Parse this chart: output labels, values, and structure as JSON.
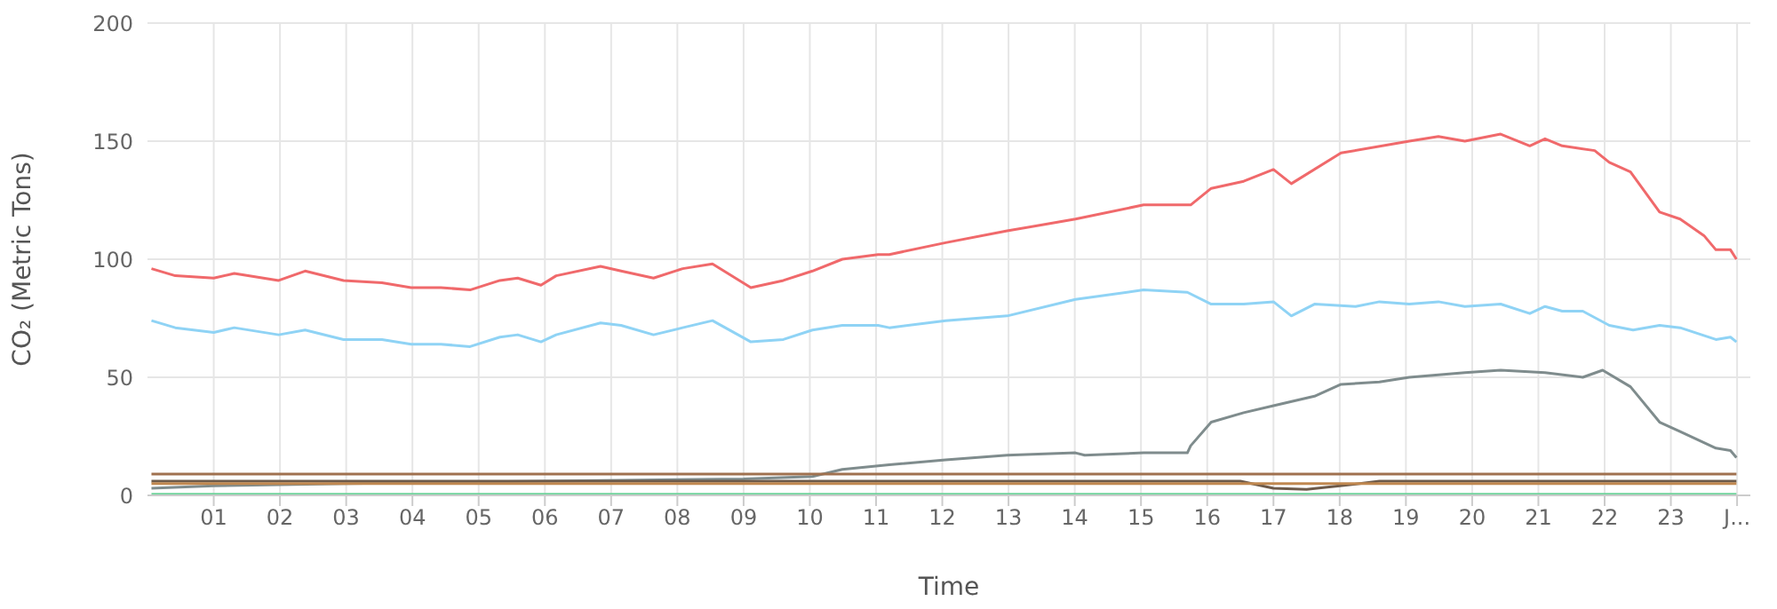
{
  "chart_data": {
    "type": "line",
    "xlabel": "Time",
    "ylabel": "CO₂ (Metric Tons)",
    "xlim": [
      0,
      24.2
    ],
    "ylim": [
      0,
      200
    ],
    "xticks": [
      {
        "value": 1,
        "label": "01"
      },
      {
        "value": 2,
        "label": "02"
      },
      {
        "value": 3,
        "label": "03"
      },
      {
        "value": 4,
        "label": "04"
      },
      {
        "value": 5,
        "label": "05"
      },
      {
        "value": 6,
        "label": "06"
      },
      {
        "value": 7,
        "label": "07"
      },
      {
        "value": 8,
        "label": "08"
      },
      {
        "value": 9,
        "label": "09"
      },
      {
        "value": 10,
        "label": "10"
      },
      {
        "value": 11,
        "label": "11"
      },
      {
        "value": 12,
        "label": "12"
      },
      {
        "value": 13,
        "label": "13"
      },
      {
        "value": 14,
        "label": "14"
      },
      {
        "value": 15,
        "label": "15"
      },
      {
        "value": 16,
        "label": "16"
      },
      {
        "value": 17,
        "label": "17"
      },
      {
        "value": 18,
        "label": "18"
      },
      {
        "value": 19,
        "label": "19"
      },
      {
        "value": 20,
        "label": "20"
      },
      {
        "value": 21,
        "label": "21"
      },
      {
        "value": 22,
        "label": "22"
      },
      {
        "value": 23,
        "label": "23"
      },
      {
        "value": 24,
        "label": "J..."
      }
    ],
    "yticks": [
      0,
      50,
      100,
      150,
      200
    ],
    "grid": true,
    "marker": "none",
    "line_style": "solid",
    "series": [
      {
        "color": "#f0696b",
        "x": [
          0.06,
          0.42,
          1.0,
          1.31,
          1.98,
          2.38,
          2.96,
          3.54,
          3.98,
          4.43,
          4.87,
          5.32,
          5.59,
          5.94,
          6.17,
          6.84,
          7.15,
          7.64,
          8.08,
          8.53,
          9.11,
          9.6,
          10.04,
          10.49,
          11.03,
          11.2,
          12.05,
          12.98,
          14.01,
          15.04,
          15.75,
          16.06,
          16.55,
          17.0,
          17.27,
          18.02,
          19.05,
          19.49,
          19.89,
          20.43,
          20.87,
          21.1,
          21.36,
          21.85,
          22.07,
          22.39,
          22.83,
          23.14,
          23.5,
          23.68,
          23.9,
          23.99
        ],
        "values": [
          96,
          93,
          92,
          94,
          91,
          95,
          91,
          90,
          88,
          88,
          87,
          91,
          92,
          89,
          93,
          97,
          95,
          92,
          96,
          98,
          88,
          91,
          95,
          100,
          102,
          102,
          107,
          112,
          117,
          123,
          123,
          130,
          133,
          138,
          132,
          145,
          150,
          152,
          150,
          153,
          148,
          151,
          148,
          146,
          141,
          137,
          120,
          117,
          110,
          104,
          104,
          100
        ]
      },
      {
        "color": "#8fd3f5",
        "x": [
          0.06,
          0.42,
          1.0,
          1.31,
          1.98,
          2.38,
          2.96,
          3.54,
          3.98,
          4.43,
          4.87,
          5.32,
          5.59,
          5.94,
          6.17,
          6.84,
          7.15,
          7.64,
          8.08,
          8.53,
          9.11,
          9.6,
          10.04,
          10.49,
          11.03,
          11.2,
          12.05,
          12.98,
          14.01,
          15.04,
          15.7,
          16.06,
          16.55,
          17.0,
          17.27,
          17.62,
          18.24,
          18.6,
          19.05,
          19.49,
          19.89,
          20.43,
          20.87,
          21.1,
          21.36,
          21.67,
          22.07,
          22.43,
          22.83,
          23.14,
          23.68,
          23.9,
          23.99
        ],
        "values": [
          74,
          71,
          69,
          71,
          68,
          70,
          66,
          66,
          64,
          64,
          63,
          67,
          68,
          65,
          68,
          73,
          72,
          68,
          71,
          74,
          65,
          66,
          70,
          72,
          72,
          71,
          74,
          76,
          83,
          87,
          86,
          81,
          81,
          82,
          76,
          81,
          80,
          82,
          81,
          82,
          80,
          81,
          77,
          80,
          78,
          78,
          72,
          70,
          72,
          71,
          66,
          67,
          65
        ]
      },
      {
        "color": "#7f8c8d",
        "x": [
          0.06,
          1.0,
          3.0,
          6.0,
          9.0,
          10.04,
          10.49,
          11.2,
          12.05,
          12.98,
          14.01,
          14.15,
          15.04,
          15.7,
          15.75,
          16.06,
          16.55,
          17.0,
          17.62,
          18.02,
          18.6,
          19.05,
          19.89,
          20.43,
          21.1,
          21.67,
          21.97,
          22.39,
          22.83,
          23.14,
          23.68,
          23.9,
          23.99
        ],
        "values": [
          3,
          4,
          5,
          6,
          7,
          8,
          11,
          13,
          15,
          17,
          18,
          17,
          18,
          18,
          21,
          31,
          35,
          38,
          42,
          47,
          48,
          50,
          52,
          53,
          52,
          50,
          53,
          46,
          31,
          27,
          20,
          19,
          16
        ]
      },
      {
        "color": "#a0714f",
        "x": [
          0.06,
          6.0,
          12.0,
          18.0,
          23.99
        ],
        "values": [
          9,
          9,
          9,
          9,
          9
        ]
      },
      {
        "color": "#6d5a4a",
        "x": [
          0.06,
          6.0,
          12.0,
          16.5,
          17.0,
          17.5,
          18.0,
          18.6,
          23.99
        ],
        "values": [
          6,
          6,
          6,
          6,
          3,
          2.5,
          4,
          6,
          6
        ]
      },
      {
        "color": "#c08850",
        "x": [
          0.06,
          6.0,
          12.0,
          18.0,
          23.99
        ],
        "values": [
          5,
          5,
          5,
          5,
          5
        ]
      },
      {
        "color": "#6fd39b",
        "x": [
          0.06,
          6.0,
          12.0,
          18.0,
          23.99
        ],
        "values": [
          0.5,
          0.5,
          0.5,
          0.5,
          0.5
        ]
      }
    ]
  }
}
